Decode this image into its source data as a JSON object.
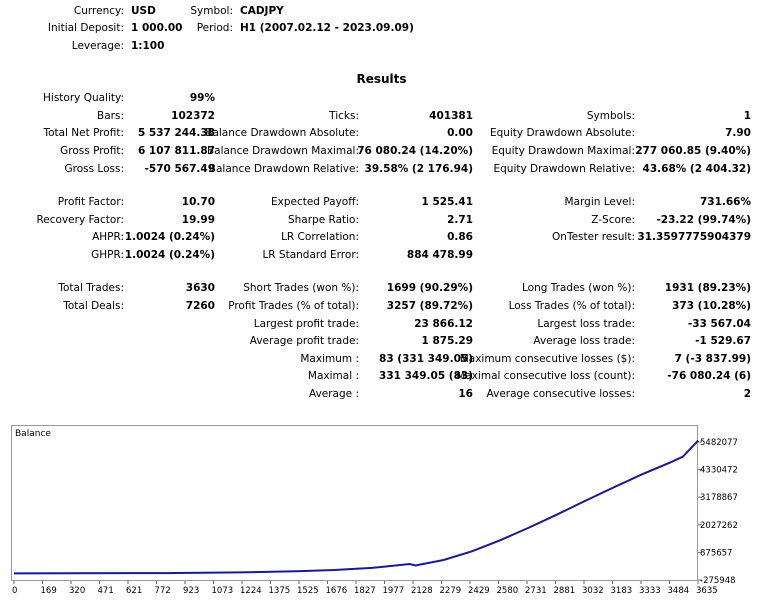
{
  "header": {
    "currency_label": "Currency:",
    "currency": "USD",
    "deposit_label": "Initial Deposit:",
    "deposit": "1 000.00",
    "leverage_label": "Leverage:",
    "leverage": "1:100",
    "symbol_label": "Symbol:",
    "symbol": "CADJPY",
    "period_label": "Period:",
    "period": "H1 (2007.02.12 - 2023.09.09)"
  },
  "results_title": "Results",
  "col1": [
    {
      "label": "History Quality:",
      "value": "99%"
    },
    {
      "label": "Bars:",
      "value": "102372"
    },
    {
      "label": "Total Net Profit:",
      "value": "5 537 244.38"
    },
    {
      "label": "Gross Profit:",
      "value": "6 107 811.87"
    },
    {
      "label": "Gross Loss:",
      "value": "-570 567.49"
    },
    {
      "label": "Profit Factor:",
      "value": "10.70"
    },
    {
      "label": "Recovery Factor:",
      "value": "19.99"
    },
    {
      "label": "AHPR:",
      "value": "1.0024 (0.24%)"
    },
    {
      "label": "GHPR:",
      "value": "1.0024 (0.24%)"
    },
    {
      "label": "Total Trades:",
      "value": "3630"
    },
    {
      "label": "Total Deals:",
      "value": "7260"
    }
  ],
  "col2": [
    {
      "label": "Ticks:",
      "value": "401381"
    },
    {
      "label": "Balance Drawdown Absolute:",
      "value": "0.00"
    },
    {
      "label": "Balance Drawdown Maximal:",
      "value": "76 080.24 (14.20%)"
    },
    {
      "label": "Balance Drawdown Relative:",
      "value": "39.58% (2 176.94)"
    },
    {
      "label": "Expected Payoff:",
      "value": "1 525.41"
    },
    {
      "label": "Sharpe Ratio:",
      "value": "2.71"
    },
    {
      "label": "LR Correlation:",
      "value": "0.86"
    },
    {
      "label": "LR Standard Error:",
      "value": "884 478.99"
    },
    {
      "label": "Short Trades (won %):",
      "value": "1699 (90.29%)"
    },
    {
      "label": "Profit Trades (% of total):",
      "value": "3257 (89.72%)"
    },
    {
      "label": "Largest profit trade:",
      "value": "23 866.12"
    },
    {
      "label": "Average profit trade:",
      "value": "1 875.29"
    },
    {
      "label": "Maximum :",
      "value": "83 (331 349.05)"
    },
    {
      "label": "Maximal :",
      "value": "331 349.05 (83)"
    },
    {
      "label": "Average :",
      "value": "16"
    }
  ],
  "col3": [
    {
      "label": "Symbols:",
      "value": "1"
    },
    {
      "label": "Equity Drawdown Absolute:",
      "value": "7.90"
    },
    {
      "label": "Equity Drawdown Maximal:",
      "value": "277 060.85 (9.40%)"
    },
    {
      "label": "Equity Drawdown Relative:",
      "value": "43.68% (2 404.32)"
    },
    {
      "label": "Margin Level:",
      "value": "731.66%"
    },
    {
      "label": "Z-Score:",
      "value": "-23.22 (99.74%)"
    },
    {
      "label": "OnTester result:",
      "value": "31.3597775904379"
    },
    {
      "label": "Long Trades (won %):",
      "value": "1931 (89.23%)"
    },
    {
      "label": "Loss Trades (% of total):",
      "value": "373 (10.28%)"
    },
    {
      "label": "Largest loss trade:",
      "value": "-33 567.04"
    },
    {
      "label": "Average loss trade:",
      "value": "-1 529.67"
    },
    {
      "label": "Maximum consecutive losses ($):",
      "value": "7 (-3 837.99)"
    },
    {
      "label": "Maximal consecutive loss (count):",
      "value": "-76 080.24 (6)"
    },
    {
      "label": "Average consecutive losses:",
      "value": "2"
    }
  ],
  "chart_data": {
    "type": "line",
    "title": "Balance",
    "line_color": "#1a1a8c",
    "y_ticks": [
      "5482077",
      "4330472",
      "3178867",
      "2027262",
      "875657",
      "-275948"
    ],
    "y_tick_values": [
      5482077,
      4330472,
      3178867,
      2027262,
      875657,
      -275948
    ],
    "ylim": [
      -275948,
      5482077
    ],
    "x_ticks": [
      "0",
      "169",
      "320",
      "471",
      "621",
      "772",
      "923",
      "1073",
      "1224",
      "1375",
      "1525",
      "1676",
      "1827",
      "1977",
      "2128",
      "2279",
      "2429",
      "2580",
      "2731",
      "2881",
      "3032",
      "3183",
      "3333",
      "3484",
      "3635"
    ],
    "xlim": [
      0,
      3630
    ],
    "series": [
      {
        "x": [
          0,
          300,
          800,
          1200,
          1500,
          1700,
          1900,
          2100,
          2130,
          2280,
          2430,
          2580,
          2730,
          2880,
          3030,
          3180,
          3330,
          3480,
          3550,
          3630
        ],
        "y": [
          1000,
          3000,
          10000,
          40000,
          90000,
          140000,
          230000,
          390000,
          330000,
          560000,
          920000,
          1380000,
          1900000,
          2450000,
          3020000,
          3580000,
          4120000,
          4620000,
          4870000,
          5537244
        ]
      }
    ]
  }
}
